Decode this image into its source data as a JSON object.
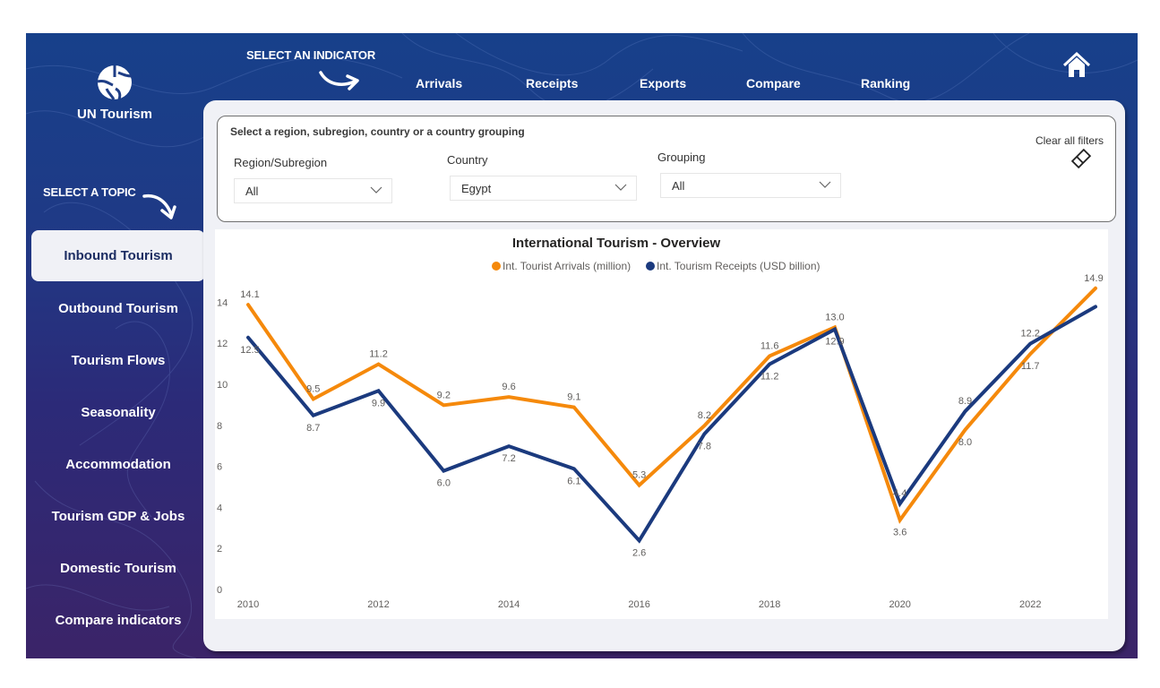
{
  "app": {
    "logo_text": "UN Tourism",
    "select_indicator_label": "SELECT AN INDICATOR",
    "select_topic_label": "SELECT A TOPIC",
    "home_icon": "home-icon"
  },
  "topnav": {
    "items": [
      {
        "label": "Arrivals"
      },
      {
        "label": "Receipts"
      },
      {
        "label": "Exports"
      },
      {
        "label": "Compare"
      },
      {
        "label": "Ranking"
      }
    ]
  },
  "sidebar": {
    "items": [
      {
        "label": "Inbound Tourism",
        "active": true
      },
      {
        "label": "Outbound Tourism"
      },
      {
        "label": "Tourism Flows"
      },
      {
        "label": "Seasonality"
      },
      {
        "label": "Accommodation"
      },
      {
        "label": "Tourism GDP & Jobs"
      },
      {
        "label": "Domestic Tourism"
      },
      {
        "label": "Compare indicators"
      }
    ]
  },
  "filters": {
    "title": "Select a region, subregion, country or a country grouping",
    "region": {
      "label": "Region/Subregion",
      "value": "All"
    },
    "country": {
      "label": "Country",
      "value": "Egypt"
    },
    "grouping": {
      "label": "Grouping",
      "value": "All"
    },
    "clear_label": "Clear all filters",
    "clear_icon": "eraser-icon"
  },
  "colors": {
    "arrivals": "#f5890b",
    "receipts": "#1b3a7e",
    "nav_bg_top": "#17408a",
    "nav_bg_bottom": "#3b2468",
    "panel_bg": "#f0f1f6"
  },
  "chart_data": {
    "type": "line",
    "title": "International Tourism - Overview",
    "xlabel": "",
    "ylabel": "",
    "x": [
      2010,
      2011,
      2012,
      2013,
      2014,
      2015,
      2016,
      2017,
      2018,
      2019,
      2020,
      2021,
      2022,
      2023
    ],
    "x_ticks": [
      "2010",
      "2012",
      "2014",
      "2016",
      "2018",
      "2020",
      "2022"
    ],
    "y_ticks": [
      "0",
      "2",
      "4",
      "6",
      "8",
      "10",
      "12",
      "14"
    ],
    "ylim": [
      0,
      15
    ],
    "grid": false,
    "legend_position": "top-center",
    "series": [
      {
        "name": "Int. Tourist Arrivals (million)",
        "color": "#f5890b",
        "values": [
          14.1,
          9.5,
          11.2,
          9.2,
          9.6,
          9.1,
          5.3,
          8.2,
          11.6,
          13.0,
          3.6,
          8.0,
          11.7,
          14.9
        ],
        "labels": [
          "14.1",
          "9.5",
          "11.2",
          "9.2",
          "9.6",
          "9.1",
          "5.3",
          "8.2",
          "11.6",
          "13.0",
          "3.6",
          "8.0",
          "11.7",
          "14.9"
        ]
      },
      {
        "name": "Int. Tourism Receipts (USD billion)",
        "color": "#1b3a7e",
        "values": [
          12.5,
          8.7,
          9.9,
          6.0,
          7.2,
          6.1,
          2.6,
          7.8,
          11.2,
          12.9,
          4.4,
          8.9,
          12.2,
          14.0
        ],
        "labels": [
          "12.5",
          "8.7",
          "9.9",
          "6.0",
          "7.2",
          "6.1",
          "2.6",
          "7.8",
          "11.2",
          "12.9",
          "4.4",
          "8.9",
          "12.2",
          ""
        ]
      }
    ]
  }
}
